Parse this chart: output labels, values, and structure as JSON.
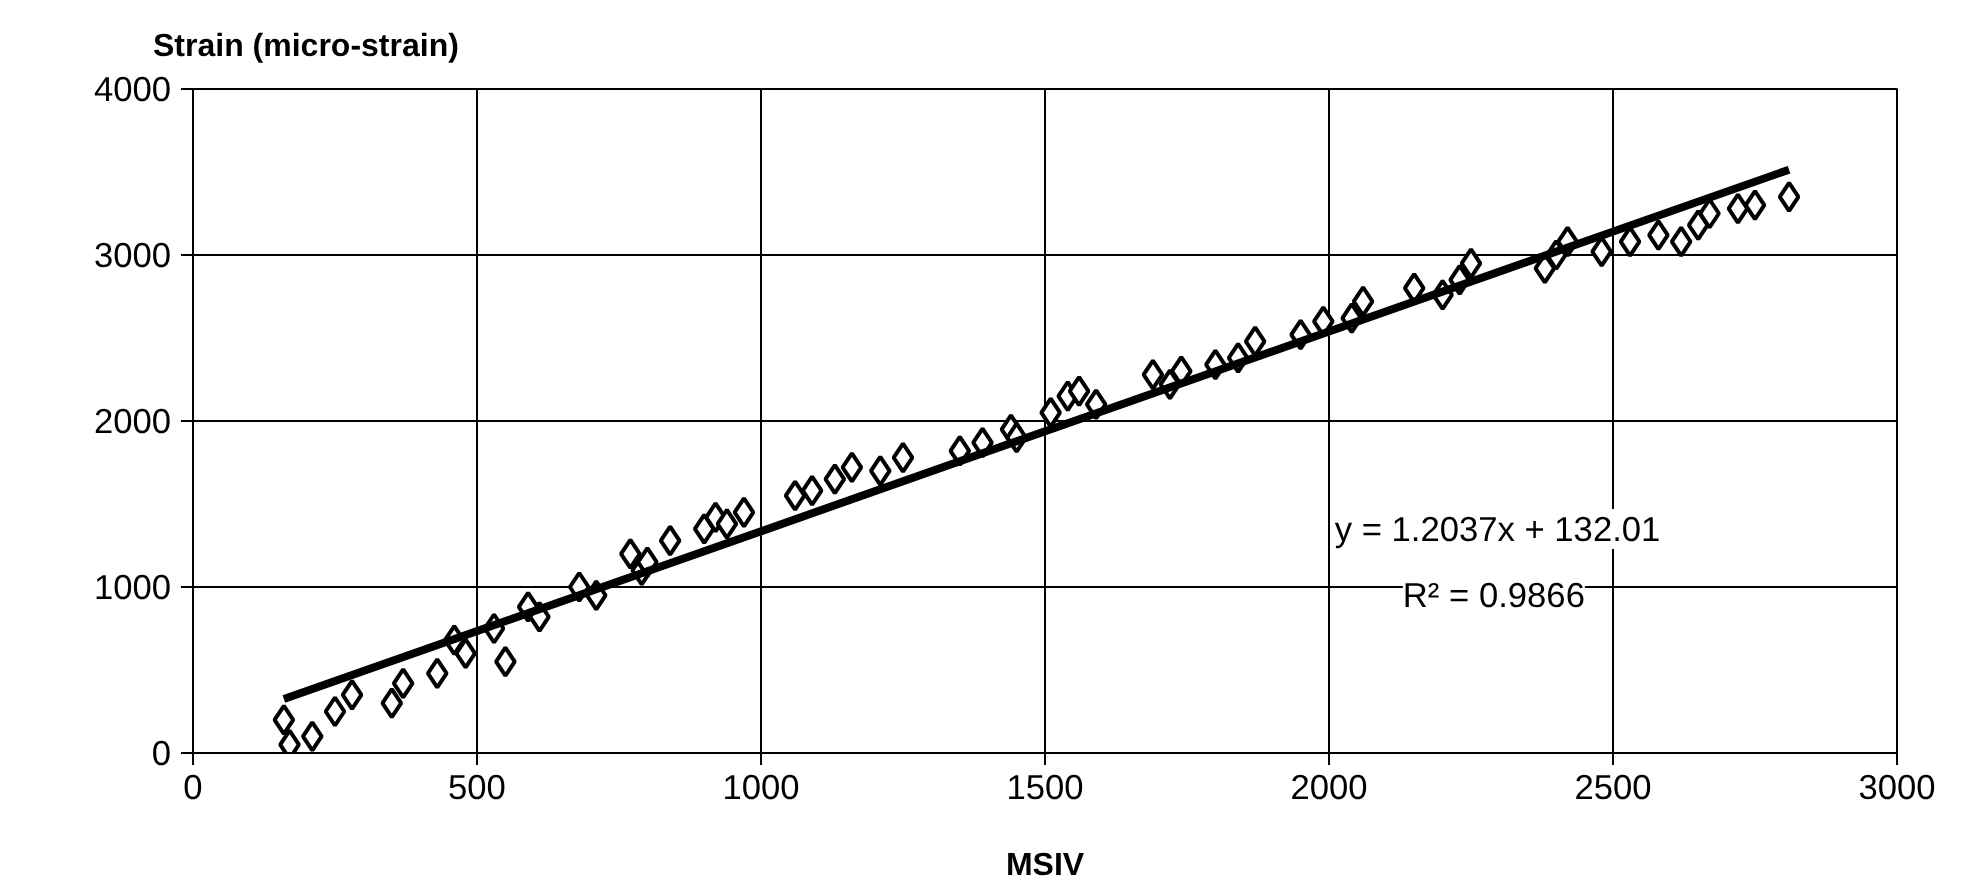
{
  "chart_data": {
    "type": "scatter",
    "xlabel": "MSIV",
    "ylabel": "Strain (micro-strain)",
    "xlim": [
      0,
      3000
    ],
    "xticks": [
      0,
      500,
      1000,
      1500,
      2000,
      2500,
      3000
    ],
    "ylim": [
      0,
      4000
    ],
    "yticks": [
      0,
      1000,
      2000,
      3000,
      4000
    ],
    "grid": true,
    "series": [
      {
        "marker": "diamond",
        "color": "#000000",
        "x": [
          160,
          170,
          210,
          250,
          280,
          350,
          370,
          430,
          460,
          480,
          530,
          550,
          590,
          610,
          680,
          710,
          770,
          790,
          800,
          840,
          900,
          920,
          940,
          970,
          1060,
          1090,
          1130,
          1160,
          1210,
          1250,
          1350,
          1390,
          1440,
          1450,
          1510,
          1540,
          1560,
          1590,
          1690,
          1720,
          1740,
          1800,
          1840,
          1870,
          1950,
          1990,
          2040,
          2060,
          2150,
          2200,
          2230,
          2250,
          2380,
          2400,
          2420,
          2480,
          2530,
          2580,
          2620,
          2650,
          2670,
          2720,
          2750,
          2810
        ],
        "values": [
          200,
          50,
          100,
          250,
          350,
          300,
          420,
          480,
          680,
          600,
          750,
          550,
          880,
          820,
          1000,
          950,
          1200,
          1100,
          1150,
          1280,
          1350,
          1420,
          1380,
          1450,
          1550,
          1580,
          1650,
          1720,
          1700,
          1780,
          1820,
          1870,
          1950,
          1900,
          2050,
          2150,
          2180,
          2100,
          2280,
          2220,
          2300,
          2340,
          2380,
          2480,
          2520,
          2600,
          2620,
          2720,
          2800,
          2760,
          2850,
          2950,
          2920,
          3000,
          3080,
          3020,
          3080,
          3120,
          3080,
          3180,
          3250,
          3280,
          3300,
          3350
        ]
      },
      {
        "type": "line",
        "color": "#000000",
        "x": [
          160,
          2810
        ],
        "values": [
          325,
          3514
        ]
      }
    ],
    "annotations": [
      "y = 1.2037x + 132.01",
      "R² = 0.9866"
    ]
  }
}
